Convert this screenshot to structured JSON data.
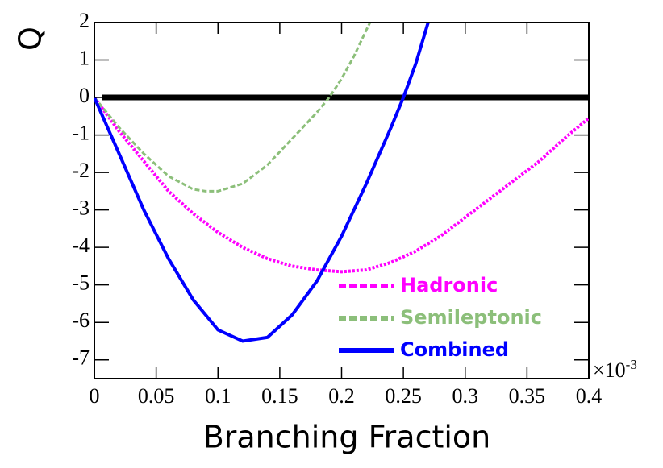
{
  "chart_data": {
    "type": "line",
    "y_label": "Q",
    "x_label": "Branching Fraction",
    "x_multiplier": "×10",
    "x_multiplier_exponent": "-3",
    "xlim": [
      0,
      0.4
    ],
    "ylim": [
      -7.5,
      2
    ],
    "xticks": [
      0,
      0.05,
      0.1,
      0.15,
      0.2,
      0.25,
      0.3,
      0.35,
      0.4
    ],
    "yticks": [
      -7,
      -6,
      -5,
      -4,
      -3,
      -2,
      -1,
      0,
      1,
      2
    ],
    "reference_y": 0,
    "reference_color": "#000000",
    "legend": "lower right",
    "series": [
      {
        "name": "Hadronic",
        "color": "#ff00ff",
        "style": "dotted",
        "x": [
          0,
          0.02,
          0.04,
          0.06,
          0.08,
          0.1,
          0.12,
          0.14,
          0.16,
          0.18,
          0.2,
          0.22,
          0.24,
          0.26,
          0.28,
          0.3,
          0.32,
          0.34,
          0.36,
          0.38,
          0.4
        ],
        "values": [
          0,
          -0.9,
          -1.7,
          -2.5,
          -3.1,
          -3.6,
          -4.0,
          -4.3,
          -4.5,
          -4.6,
          -4.65,
          -4.6,
          -4.4,
          -4.1,
          -3.7,
          -3.2,
          -2.7,
          -2.2,
          -1.7,
          -1.1,
          -0.55
        ]
      },
      {
        "name": "Semileptonic",
        "color": "#8cbf7a",
        "style": "dashed",
        "x": [
          0,
          0.02,
          0.04,
          0.06,
          0.08,
          0.09,
          0.1,
          0.12,
          0.14,
          0.16,
          0.18,
          0.19,
          0.2,
          0.21,
          0.22,
          0.223
        ],
        "values": [
          0,
          -0.8,
          -1.5,
          -2.1,
          -2.45,
          -2.5,
          -2.5,
          -2.3,
          -1.8,
          -1.1,
          -0.4,
          0,
          0.5,
          1.1,
          1.8,
          2
        ]
      },
      {
        "name": "Combined",
        "color": "#0000ff",
        "style": "solid",
        "x": [
          0,
          0.02,
          0.04,
          0.06,
          0.08,
          0.1,
          0.12,
          0.14,
          0.16,
          0.18,
          0.2,
          0.22,
          0.24,
          0.25,
          0.26,
          0.27
        ],
        "values": [
          0,
          -1.5,
          -3.0,
          -4.3,
          -5.4,
          -6.2,
          -6.5,
          -6.4,
          -5.8,
          -4.9,
          -3.7,
          -2.3,
          -0.8,
          0,
          0.9,
          2
        ]
      }
    ]
  }
}
